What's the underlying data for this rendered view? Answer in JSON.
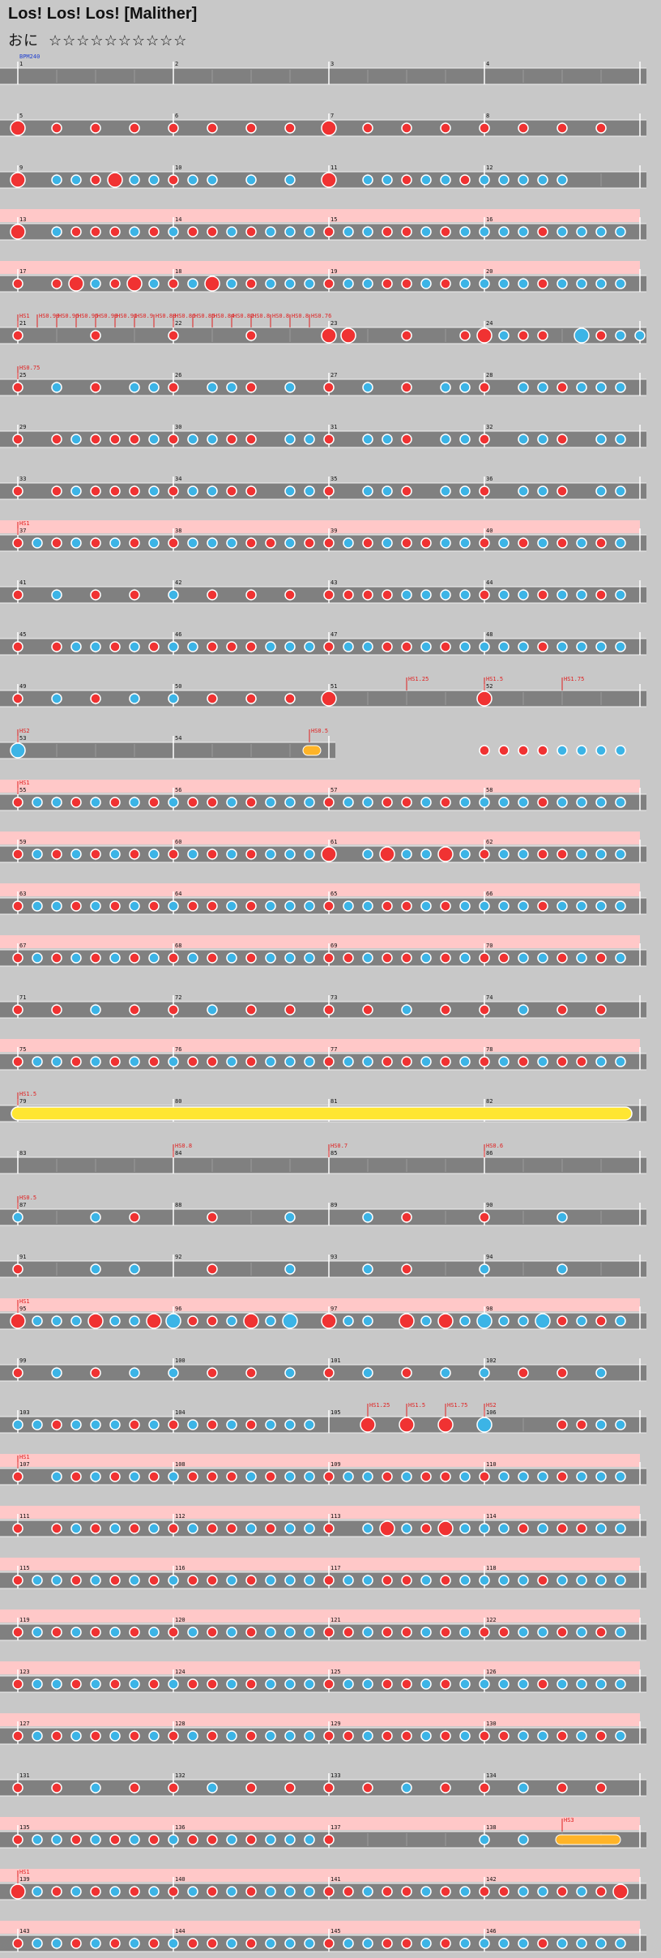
{
  "song": {
    "title": "Los! Los! Los! [Malither]",
    "difficulty_label": "おに",
    "stars": "☆☆☆☆☆☆☆☆☆☆"
  },
  "colors": {
    "bg": "#c8c8c8",
    "lane": "#808080",
    "gogo": "#ffc8c8",
    "don": "#f03232",
    "ka": "#3cb4e6",
    "roll": "#ffe632",
    "balloon": "#ffb428"
  },
  "bpm_label": "BPM240",
  "rows": [
    {
      "first": 1,
      "bars": 4,
      "gogo": false,
      "notes": "........................................................................................................",
      "mark": {}
    },
    {
      "first": 5,
      "bars": 4,
      "gogo": false,
      "notes": "D.d.d.d.d.d.d.d.D.d.d.d.d.d.d.d.",
      "mark": {}
    },
    {
      "first": 9,
      "bars": 4,
      "gogo": false,
      "notes": "D.kkdDkkdkk.k.k.D.kkdkkdkkkkk...",
      "mark": {}
    },
    {
      "first": 13,
      "bars": 4,
      "gogo": true,
      "notes": "D.kdddkdkddkdkkkdkkddkdkkkkdkkkk",
      "mark": {}
    },
    {
      "first": 17,
      "bars": 4,
      "gogo": true,
      "notes": "d.dDkdDkdkDkdkkkdkkddkdkkkkdkkkk",
      "mark": {}
    },
    {
      "first": 21,
      "bars": 4,
      "gogo": false,
      "notes": "d...d...d...d...DD..d..dDkdd.Kdkk",
      "mark": {
        "0": "HS1",
        "1": "HS0.98",
        "2": "HS0.96",
        "3": "HS0.95",
        "4": "HS0.93",
        "5": "HS0.91",
        "6": "HS0.9",
        "7": "HS0.88",
        "8": "HS0.86",
        "9": "HS0.85",
        "10": "HS0.84",
        "11": "HS0.82",
        "12": "HS0.8",
        "13": "HS0.8",
        "14": "HS0.8",
        "15": "HS0.76"
      }
    },
    {
      "first": 25,
      "bars": 4,
      "gogo": false,
      "notes": "d.k.d.kkd.kkd.k.d.k.d.kkd.kkdkkk",
      "mark": {
        "0": "HS0.75"
      }
    },
    {
      "first": 29,
      "bars": 4,
      "gogo": false,
      "notes": "d.dkdddkdkkdd.kkd.kkd.kkd.kkd.kk",
      "mark": {}
    },
    {
      "first": 33,
      "bars": 4,
      "gogo": false,
      "notes": "d.dkdddkdkkdd.kkd.kkd.kkd.kkd.kk",
      "mark": {}
    },
    {
      "first": 37,
      "bars": 4,
      "gogo": true,
      "notes": "dkdkdkdkdkkkddkddkdkddkkdkdkdkdk",
      "mark": {
        "0": "HS1"
      }
    },
    {
      "first": 41,
      "bars": 4,
      "gogo": false,
      "notes": "d.k.d.d.k.d.d.d.ddddkkkkdkkdkkdk",
      "mark": {}
    },
    {
      "first": 45,
      "bars": 4,
      "gogo": false,
      "notes": "d.dkkdkdkkdddkkkdkkddkdkkkkdkkkk",
      "mark": {}
    },
    {
      "first": 49,
      "bars": 4,
      "gogo": false,
      "notes": "d.k.d.k.k.d.d.d.D.......D.......",
      "mark": {
        "20": "HS1.25",
        "24": "HS1.5",
        "28": "HS1.75"
      }
    },
    {
      "first": 53,
      "bars": 2,
      "gogo": false,
      "notes": "K..............B........ddddkkkk",
      "mark": {
        "0": "HS2",
        "15": "HS0.5"
      }
    },
    {
      "first": 55,
      "bars": 4,
      "gogo": true,
      "notes": "dkkdkdkdkddkdkkkdkkddkdkkkkdkkkk",
      "mark": {
        "0": "HS1"
      }
    },
    {
      "first": 59,
      "bars": 4,
      "gogo": true,
      "notes": "dkdkdkdkdkdkdkkkD.kDkkDkdkkddkkk",
      "mark": {}
    },
    {
      "first": 63,
      "bars": 4,
      "gogo": true,
      "notes": "dkkdkdkdkddkdkkkdkkddkdkkkkdkkkk",
      "mark": {}
    },
    {
      "first": 67,
      "bars": 4,
      "gogo": true,
      "notes": "dkdkdkdkdkdkdkkkddkddkdkddkkdkdk",
      "mark": {}
    },
    {
      "first": 71,
      "bars": 4,
      "gogo": false,
      "notes": "d.d.k.d.d.k.d.d.d.d.k.d.d.k.d.d.",
      "mark": {}
    },
    {
      "first": 75,
      "bars": 4,
      "gogo": true,
      "notes": "dkkdkdkdkddkdkkkdkkddkdkdkdkddkk",
      "mark": {}
    },
    {
      "first": 79,
      "bars": 4,
      "gogo": false,
      "notes": "R...............................",
      "mark": {
        "0": "HS1.5"
      }
    },
    {
      "first": 83,
      "bars": 4,
      "gogo": false,
      "notes": "................................",
      "mark": {
        "8": "HS0.8",
        "16": "HS0.7",
        "24": "HS0.6"
      }
    },
    {
      "first": 87,
      "bars": 4,
      "gogo": false,
      "notes": "k...k.d...d...k...k.d...d...k...",
      "mark": {
        "0": "HS0.5"
      }
    },
    {
      "first": 91,
      "bars": 4,
      "gogo": false,
      "notes": "d...k.k...d...k...k.d...k...k...",
      "mark": {}
    },
    {
      "first": 95,
      "bars": 4,
      "gogo": true,
      "notes": "DkkkDkkDKddkDkK.Dkk.DkDkKkkKdkdk",
      "mark": {
        "0": "HS1"
      }
    },
    {
      "first": 99,
      "bars": 4,
      "gogo": false,
      "notes": "d.k.d.k.k.d.d.k.d.k.d.k.k.d.d.k.",
      "mark": {}
    },
    {
      "first": 103,
      "bars": 4,
      "gogo": false,
      "notes": "kkdkkkdkdkdkdkkk..D.D.D.K...ddkk",
      "mark": {
        "18": "HS1.25",
        "20": "HS1.5",
        "22": "HS1.75",
        "24": "HS2"
      }
    },
    {
      "first": 107,
      "bars": 4,
      "gogo": true,
      "notes": "d.kdkdkdkdddkdkkdkkdkddkdkkkdkkk",
      "mark": {
        "0": "HS1"
      }
    },
    {
      "first": 111,
      "bars": 4,
      "gogo": true,
      "notes": "d.dkdkdkdkddkdkkd.kDkdDkkkdkddkk",
      "mark": {}
    },
    {
      "first": 115,
      "bars": 4,
      "gogo": true,
      "notes": "dkkdkdkdkddkdkkkdkkddkdkkkkdkkkk",
      "mark": {}
    },
    {
      "first": 119,
      "bars": 4,
      "gogo": true,
      "notes": "dkdkdkdkdkdkdkkkddkddkdkddkkdkdk",
      "mark": {}
    },
    {
      "first": 123,
      "bars": 4,
      "gogo": true,
      "notes": "dkkdkdkdkddkdkkkdkkddkdkkkkdkkkk",
      "mark": {}
    },
    {
      "first": 127,
      "bars": 4,
      "gogo": true,
      "notes": "dkdkdkdkdkdkdkkkddkddkdkddkkdkdk",
      "mark": {}
    },
    {
      "first": 131,
      "bars": 4,
      "gogo": false,
      "notes": "d.d.k.d.d.k.d.d.d.d.k.d.d.k.d.d.",
      "mark": {}
    },
    {
      "first": 135,
      "bars": 4,
      "gogo": true,
      "notes": "dkkdkdkdkddkdkkkd.......k.k.B...",
      "mark": {
        "28": "HS3"
      }
    },
    {
      "first": 139,
      "bars": 4,
      "gogo": true,
      "notes": "DkdkdkdkdkdkdkkkddkddkdkddkkdkdD",
      "mark": {
        "0": "HS1"
      }
    },
    {
      "first": 143,
      "bars": 4,
      "gogo": true,
      "notes": "dkkdkdkdkddkdkkkdkkddkdkkkkdkkkk",
      "mark": {}
    }
  ]
}
